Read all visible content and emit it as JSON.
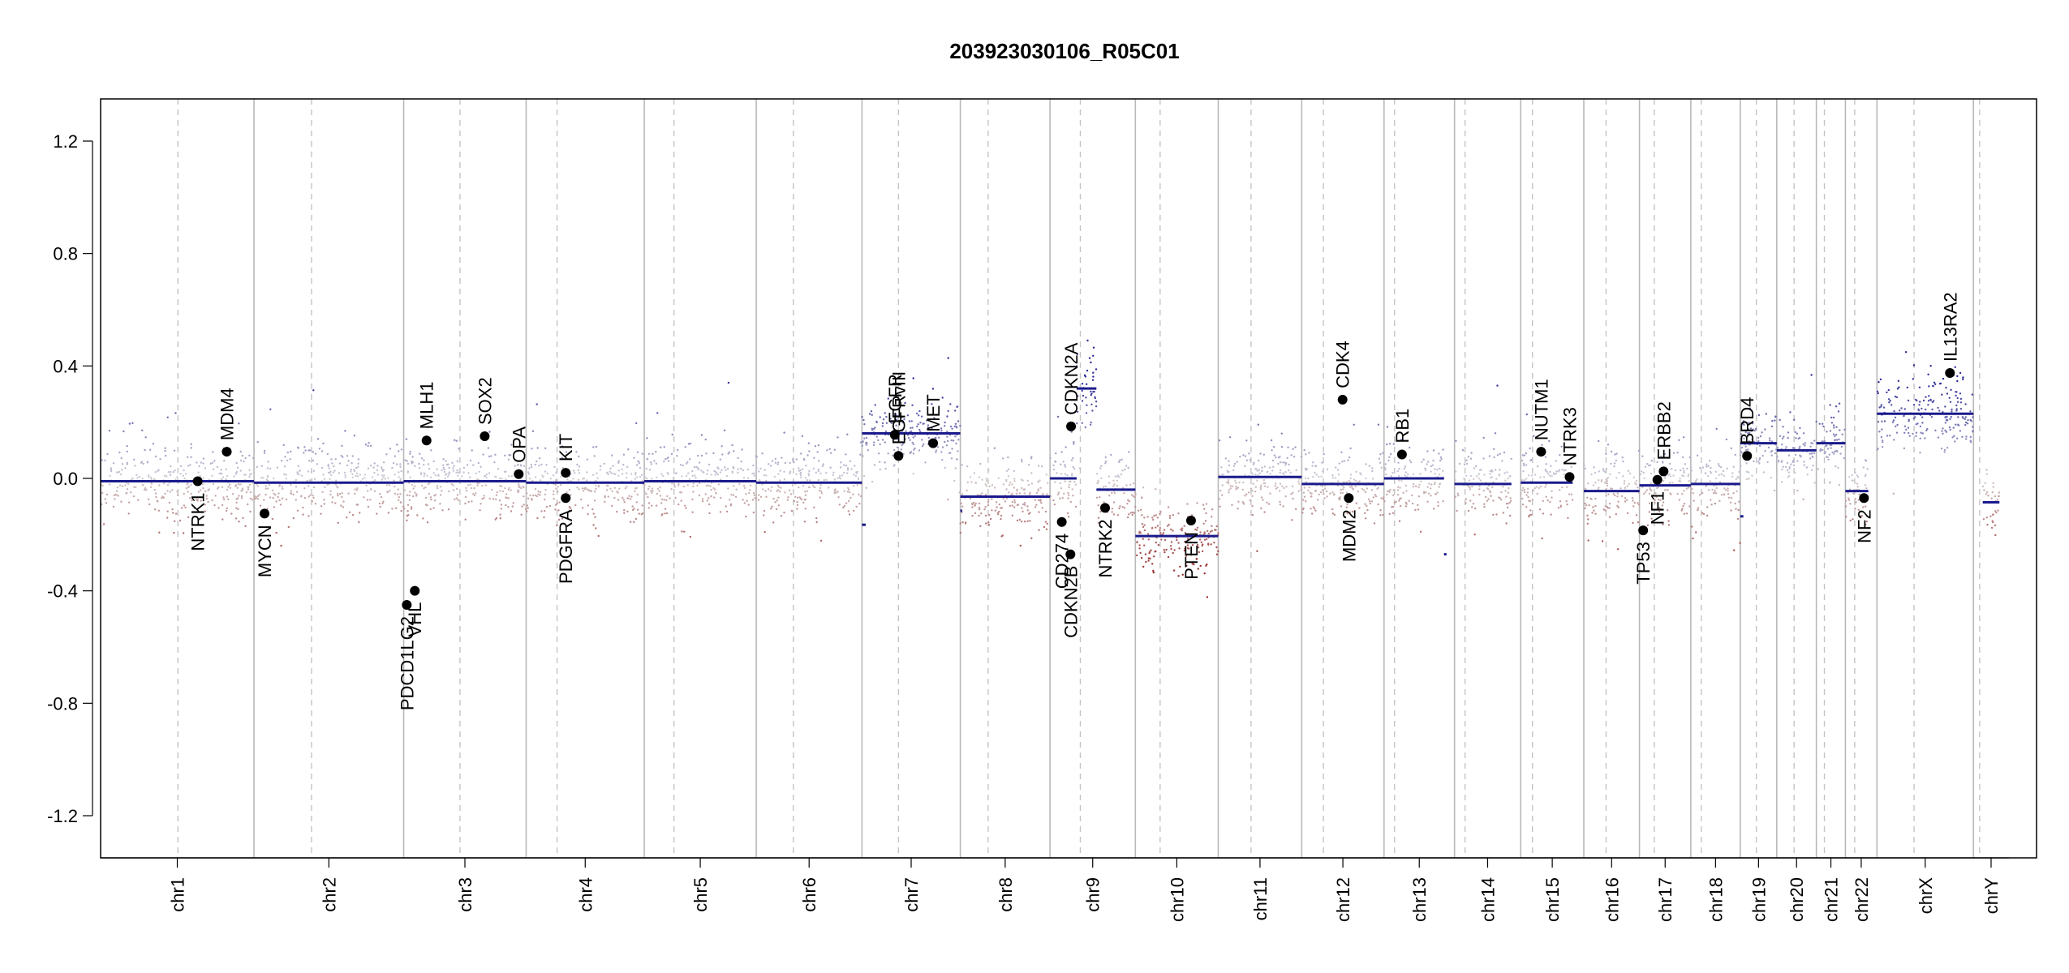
{
  "chart_data": {
    "type": "scatter",
    "title": "203923030106_R05C01",
    "xlabel": "",
    "ylabel": "",
    "ylim": [
      -1.35,
      1.35
    ],
    "yticks": [
      -1.2,
      -0.8,
      -0.4,
      0.0,
      0.4,
      0.8,
      1.2
    ],
    "ytick_labels": [
      "-1.2",
      "-0.8",
      "-0.4",
      "0.0",
      "0.4",
      "0.8",
      "1.2"
    ],
    "xlim": [
      0,
      3130
    ],
    "chromosomes": [
      {
        "name": "chr1",
        "start": 0,
        "end": 248,
        "centromere": 125
      },
      {
        "name": "chr2",
        "start": 248,
        "end": 490,
        "centromere": 341
      },
      {
        "name": "chr3",
        "start": 490,
        "end": 688,
        "centromere": 581
      },
      {
        "name": "chr4",
        "start": 688,
        "end": 879,
        "centromere": 738
      },
      {
        "name": "chr5",
        "start": 879,
        "end": 1060,
        "centromere": 927
      },
      {
        "name": "chr6",
        "start": 1060,
        "end": 1231,
        "centromere": 1120
      },
      {
        "name": "chr7",
        "start": 1231,
        "end": 1390,
        "centromere": 1290
      },
      {
        "name": "chr8",
        "start": 1390,
        "end": 1535,
        "centromere": 1435
      },
      {
        "name": "chr9",
        "start": 1535,
        "end": 1673,
        "centromere": 1584
      },
      {
        "name": "chr10",
        "start": 1673,
        "end": 1807,
        "centromere": 1713
      },
      {
        "name": "chr11",
        "start": 1807,
        "end": 1942,
        "centromere": 1860
      },
      {
        "name": "chr12",
        "start": 1942,
        "end": 2075,
        "centromere": 1977
      },
      {
        "name": "chr13",
        "start": 2075,
        "end": 2189,
        "centromere": 2092
      },
      {
        "name": "chr14",
        "start": 2189,
        "end": 2296,
        "centromere": 2206
      },
      {
        "name": "chr15",
        "start": 2296,
        "end": 2398,
        "centromere": 2315
      },
      {
        "name": "chr16",
        "start": 2398,
        "end": 2488,
        "centromere": 2434
      },
      {
        "name": "chr17",
        "start": 2488,
        "end": 2571,
        "centromere": 2512
      },
      {
        "name": "chr18",
        "start": 2571,
        "end": 2651,
        "centromere": 2588
      },
      {
        "name": "chr19",
        "start": 2651,
        "end": 2710,
        "centromere": 2677
      },
      {
        "name": "chr20",
        "start": 2710,
        "end": 2774,
        "centromere": 2738
      },
      {
        "name": "chr21",
        "start": 2774,
        "end": 2821,
        "centromere": 2787
      },
      {
        "name": "chr22",
        "start": 2821,
        "end": 2872,
        "centromere": 2836
      },
      {
        "name": "chrX",
        "start": 2872,
        "end": 3028,
        "centromere": 2932
      },
      {
        "name": "chrY",
        "start": 3028,
        "end": 3085,
        "centromere": 3038
      }
    ],
    "segments": [
      {
        "chr": "chr1",
        "x0": 0,
        "x1": 248,
        "y": -0.01
      },
      {
        "chr": "chr2",
        "x0": 248,
        "x1": 490,
        "y": -0.015
      },
      {
        "chr": "chr3",
        "x0": 490,
        "x1": 688,
        "y": -0.01
      },
      {
        "chr": "chr4",
        "x0": 688,
        "x1": 879,
        "y": -0.015
      },
      {
        "chr": "chr5",
        "x0": 879,
        "x1": 1060,
        "y": -0.01
      },
      {
        "chr": "chr6",
        "x0": 1060,
        "x1": 1231,
        "y": -0.015
      },
      {
        "chr": "chr7",
        "x0": 1231,
        "x1": 1390,
        "y": 0.16
      },
      {
        "chr": "chr8",
        "x0": 1390,
        "x1": 1535,
        "y": -0.065
      },
      {
        "chr": "chr9",
        "x0": 1535,
        "x1": 1578,
        "y": 0.0
      },
      {
        "chr": "chr9",
        "x0": 1578,
        "x1": 1610,
        "y": 0.32
      },
      {
        "chr": "chr9",
        "x0": 1610,
        "x1": 1673,
        "y": -0.04
      },
      {
        "chr": "chr10",
        "x0": 1673,
        "x1": 1807,
        "y": -0.205
      },
      {
        "chr": "chr11",
        "x0": 1807,
        "x1": 1942,
        "y": 0.005
      },
      {
        "chr": "chr12",
        "x0": 1942,
        "x1": 2075,
        "y": -0.02
      },
      {
        "chr": "chr13",
        "x0": 2075,
        "x1": 2172,
        "y": 0.0
      },
      {
        "chr": "chr14",
        "x0": 2189,
        "x1": 2281,
        "y": -0.02
      },
      {
        "chr": "chr15",
        "x0": 2296,
        "x1": 2380,
        "y": -0.015
      },
      {
        "chr": "chr16",
        "x0": 2398,
        "x1": 2488,
        "y": -0.045
      },
      {
        "chr": "chr17",
        "x0": 2488,
        "x1": 2571,
        "y": -0.025
      },
      {
        "chr": "chr18",
        "x0": 2571,
        "x1": 2651,
        "y": -0.02
      },
      {
        "chr": "chr19",
        "x0": 2651,
        "x1": 2710,
        "y": 0.125
      },
      {
        "chr": "chr20",
        "x0": 2710,
        "x1": 2774,
        "y": 0.1
      },
      {
        "chr": "chr21",
        "x0": 2774,
        "x1": 2821,
        "y": 0.125
      },
      {
        "chr": "chr22",
        "x0": 2821,
        "x1": 2858,
        "y": -0.045
      },
      {
        "chr": "chrX",
        "x0": 2872,
        "x1": 3028,
        "y": 0.23
      },
      {
        "chr": "chrY",
        "x0": 3043,
        "x1": 3070,
        "y": -0.085
      },
      {
        "chr": "chr6",
        "x0": 1231,
        "x1": 1237,
        "y": -0.165
      },
      {
        "chr": "chr8",
        "x0": 1390,
        "x1": 1393,
        "y": -0.115
      },
      {
        "chr": "chr13",
        "x0": 2172,
        "x1": 2176,
        "y": -0.27
      },
      {
        "chr": "chr19",
        "x0": 2651,
        "x1": 2656,
        "y": -0.135
      }
    ],
    "genes": [
      {
        "name": "NTRK1",
        "x": 157,
        "y": -0.01,
        "label_side": "below"
      },
      {
        "name": "MDM4",
        "x": 204,
        "y": 0.095,
        "label_side": "above"
      },
      {
        "name": "MYCN",
        "x": 265,
        "y": -0.125,
        "label_side": "below"
      },
      {
        "name": "PDCD1LG2",
        "x": 495,
        "y": -0.45,
        "label_side": "below"
      },
      {
        "name": "VHL",
        "x": 508,
        "y": -0.4,
        "label_side": "below"
      },
      {
        "name": "MLH1",
        "x": 527,
        "y": 0.135,
        "label_side": "above"
      },
      {
        "name": "SOX2",
        "x": 621,
        "y": 0.15,
        "label_side": "above"
      },
      {
        "name": "OPA",
        "x": 676,
        "y": 0.015,
        "label_side": "above"
      },
      {
        "name": "KIT",
        "x": 752,
        "y": 0.02,
        "label_side": "above"
      },
      {
        "name": "PDGFRA",
        "x": 752,
        "y": -0.07,
        "label_side": "below"
      },
      {
        "name": "EGFR",
        "x": 1284,
        "y": 0.155,
        "label_side": "above"
      },
      {
        "name": "EGFRvIII",
        "x": 1290,
        "y": 0.08,
        "label_side": "above"
      },
      {
        "name": "MET",
        "x": 1346,
        "y": 0.125,
        "label_side": "above"
      },
      {
        "name": "CDKN2A",
        "x": 1569,
        "y": 0.185,
        "label_side": "above"
      },
      {
        "name": "CD274",
        "x": 1554,
        "y": -0.155,
        "label_side": "below"
      },
      {
        "name": "CDKN2B",
        "x": 1568,
        "y": -0.27,
        "label_side": "below"
      },
      {
        "name": "NTRK2",
        "x": 1624,
        "y": -0.105,
        "label_side": "below"
      },
      {
        "name": "PTEN",
        "x": 1763,
        "y": -0.15,
        "label_side": "below"
      },
      {
        "name": "CDK4",
        "x": 2008,
        "y": 0.28,
        "label_side": "above"
      },
      {
        "name": "MDM2",
        "x": 2018,
        "y": -0.07,
        "label_side": "below"
      },
      {
        "name": "RB1",
        "x": 2104,
        "y": 0.085,
        "label_side": "above"
      },
      {
        "name": "NUTM1",
        "x": 2329,
        "y": 0.095,
        "label_side": "above"
      },
      {
        "name": "NTRK3",
        "x": 2375,
        "y": 0.005,
        "label_side": "above"
      },
      {
        "name": "TP53",
        "x": 2494,
        "y": -0.185,
        "label_side": "below"
      },
      {
        "name": "NF1",
        "x": 2517,
        "y": -0.005,
        "label_side": "below"
      },
      {
        "name": "ERBB2",
        "x": 2527,
        "y": 0.025,
        "label_side": "above"
      },
      {
        "name": "BRD4",
        "x": 2662,
        "y": 0.08,
        "label_side": "above"
      },
      {
        "name": "NF2",
        "x": 2851,
        "y": -0.07,
        "label_side": "below"
      },
      {
        "name": "IL13RA2",
        "x": 2990,
        "y": 0.375,
        "label_side": "above"
      }
    ],
    "grid": false,
    "legend": "none"
  }
}
